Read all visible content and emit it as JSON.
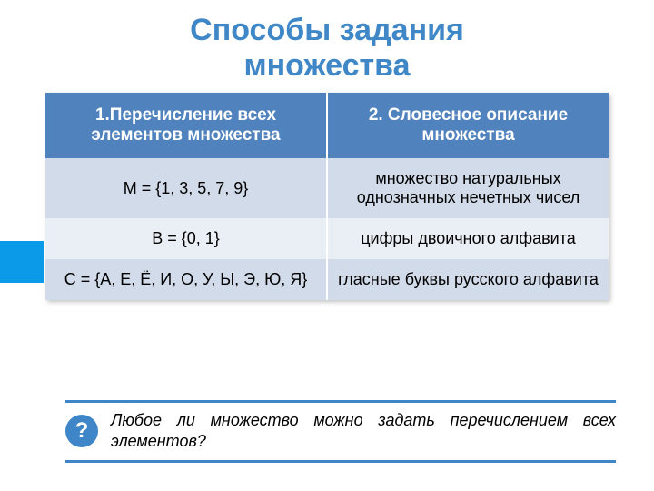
{
  "title_line1": "Способы задания",
  "title_line2": "множества",
  "table": {
    "header_bg": "#5082be",
    "header_color": "#ffffff",
    "row_alt_a": "#d2dbe9",
    "row_alt_b": "#eaeef5",
    "columns": [
      "1.Перечисление всех элементов множества",
      "2. Словесное описание множества"
    ],
    "rows": [
      [
        "M = {1, 3, 5, 7, 9}",
        "множество натуральных однозначных нечетных чисел"
      ],
      [
        "B = {0, 1}",
        "цифры двоичного алфавита"
      ],
      [
        "С = {А, Е, Ё, И, О, У, Ы, Э, Ю, Я}",
        "гласные буквы русского алфавита"
      ]
    ]
  },
  "footer": {
    "icon_label": "?",
    "text": "Любое ли множество можно задать перечислением всех элементов?",
    "line_color": "#3e86c7"
  },
  "accent_color": "#3f87c6",
  "sidebar_color": "#0b9ae8"
}
